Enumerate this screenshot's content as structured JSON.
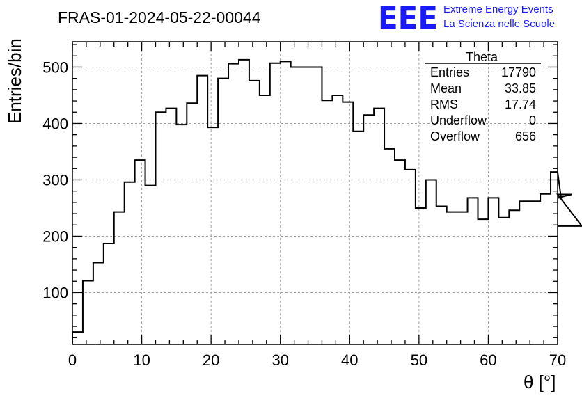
{
  "header": {
    "run_title": "FRAS-01-2024-05-22-00044",
    "logo_mark": "EEE",
    "logo_line1": "Extreme Energy Events",
    "logo_line2": "La Scienza nelle Scuole"
  },
  "stats": {
    "title": "Theta",
    "rows": [
      {
        "label": "Entries",
        "value": "17790"
      },
      {
        "label": "Mean",
        "value": "33.85"
      },
      {
        "label": "RMS",
        "value": "17.74"
      },
      {
        "label": "Underflow",
        "value": "0"
      },
      {
        "label": "Overflow",
        "value": "656"
      }
    ]
  },
  "colors": {
    "logo": "#1a1aff",
    "line": "#000000",
    "grid": "#a0a0a0"
  },
  "chart_data": {
    "type": "histogram",
    "title": "FRAS-01-2024-05-22-00044",
    "xlabel": "θ [°]",
    "ylabel": "Entries/bin",
    "xlim": [
      0,
      70
    ],
    "ylim": [
      8,
      545
    ],
    "x_ticks": [
      0,
      10,
      20,
      30,
      40,
      50,
      60,
      70
    ],
    "y_ticks": [
      100,
      200,
      300,
      400,
      500
    ],
    "grid": true,
    "bin_width": 1.5,
    "bin_edges_start": 0,
    "values": [
      30,
      121,
      153,
      187,
      243,
      296,
      335,
      290,
      420,
      427,
      398,
      436,
      485,
      393,
      480,
      506,
      513,
      476,
      450,
      507,
      510,
      500,
      500,
      500,
      441,
      450,
      438,
      386,
      415,
      427,
      355,
      335,
      318,
      250,
      300,
      253,
      243,
      243,
      268,
      230,
      268,
      233,
      246,
      262,
      262,
      275,
      314,
      268,
      274,
      218
    ]
  }
}
